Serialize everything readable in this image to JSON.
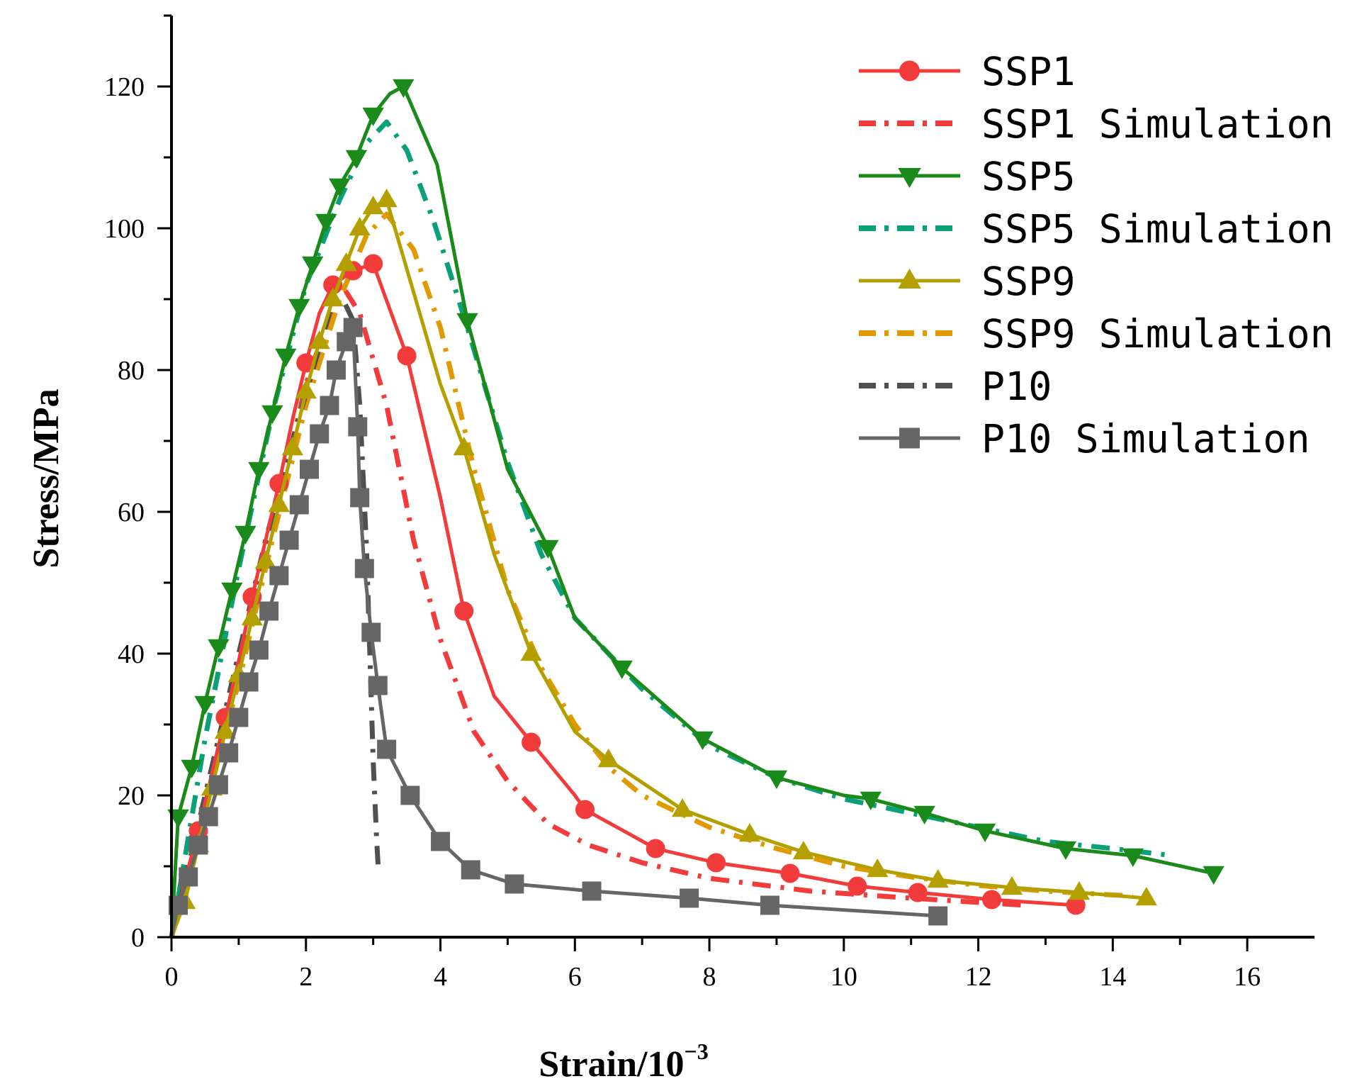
{
  "chart_data": {
    "type": "line",
    "title": "",
    "xlabel": "Strain/10",
    "xlabel_sup": "−3",
    "ylabel": "Stress/MPa",
    "xlim": [
      0,
      17
    ],
    "ylim": [
      0,
      130
    ],
    "xticks": [
      0,
      2,
      4,
      6,
      8,
      10,
      12,
      14,
      16
    ],
    "yticks": [
      0,
      20,
      40,
      60,
      80,
      100,
      120
    ],
    "legend_position": "top-right",
    "series": [
      {
        "name": "SSP1",
        "color": "#f23c3c",
        "style": "solid",
        "marker": "circle",
        "x": [
          0,
          0.2,
          0.4,
          0.6,
          0.8,
          1.0,
          1.2,
          1.4,
          1.6,
          1.8,
          2.0,
          2.2,
          2.4,
          2.7,
          3.0,
          3.5,
          4.0,
          4.35,
          4.8,
          5.35,
          6.0,
          6.15,
          7.2,
          8.1,
          9.2,
          10.2,
          11.1,
          12.2,
          13.45
        ],
        "y": [
          0,
          8,
          15,
          23,
          31,
          39,
          48,
          56,
          64,
          73,
          81,
          88,
          92,
          94,
          95,
          82,
          62,
          46,
          34,
          27.5,
          20,
          18,
          12.5,
          10.5,
          9,
          7.2,
          6.3,
          5.3,
          4.5
        ],
        "markers_x": [
          0.4,
          0.8,
          1.2,
          1.6,
          2.0,
          2.4,
          2.7,
          3.0,
          3.5,
          4.35,
          5.35,
          6.15,
          7.2,
          8.1,
          9.2,
          10.2,
          11.1,
          12.2,
          13.45
        ],
        "markers_y": [
          15,
          31,
          48,
          64,
          81,
          92,
          94,
          95,
          82,
          46,
          27.5,
          18,
          12.5,
          10.5,
          9,
          7.2,
          6.3,
          5.3,
          4.5
        ]
      },
      {
        "name": "SSP1 Simulation",
        "color": "#f23c3c",
        "style": "dashdot",
        "marker": "none",
        "x": [
          0,
          0.5,
          1.0,
          1.5,
          2.0,
          2.4,
          2.6,
          2.8,
          3.2,
          3.6,
          4.0,
          4.5,
          5.0,
          5.6,
          6.2,
          7.0,
          8.0,
          9.5,
          11.0,
          12.7
        ],
        "y": [
          0,
          18,
          38,
          58,
          78,
          89,
          91,
          88,
          75,
          56,
          42,
          29,
          22,
          16,
          13,
          10.5,
          8.3,
          6.5,
          5.5,
          4.5
        ]
      },
      {
        "name": "SSP5",
        "color": "#1a8a1a",
        "style": "solid",
        "marker": "triangle-down",
        "x": [
          0,
          0.1,
          0.3,
          0.5,
          0.7,
          0.9,
          1.1,
          1.3,
          1.5,
          1.7,
          1.9,
          2.1,
          2.3,
          2.5,
          2.75,
          3.0,
          3.25,
          3.45,
          3.95,
          4.4,
          5.0,
          5.6,
          6.0,
          6.7,
          7.9,
          8.5,
          9.0,
          10.0,
          10.4,
          11.2,
          12.1,
          13.3,
          14.3,
          15.5
        ],
        "y": [
          0,
          17,
          24,
          33,
          41,
          49,
          57,
          66,
          74,
          82,
          89,
          95,
          101,
          106,
          110,
          116,
          119,
          120,
          109,
          87,
          66,
          55,
          45,
          38,
          28,
          25,
          22.5,
          20,
          19.5,
          17.5,
          15,
          12.5,
          11.5,
          9
        ],
        "markers_x": [
          0.1,
          0.3,
          0.5,
          0.7,
          0.9,
          1.1,
          1.3,
          1.5,
          1.7,
          1.9,
          2.1,
          2.3,
          2.5,
          2.75,
          3.0,
          3.45,
          4.4,
          5.6,
          6.7,
          7.9,
          9.0,
          10.4,
          11.2,
          12.1,
          13.3,
          14.3,
          15.5
        ],
        "markers_y": [
          17,
          24,
          33,
          41,
          49,
          57,
          66,
          74,
          82,
          89,
          95,
          101,
          106,
          110,
          116,
          120,
          87,
          55,
          38,
          28,
          22.5,
          19.5,
          17.5,
          15,
          12.5,
          11.5,
          9
        ]
      },
      {
        "name": "SSP5 Simulation",
        "color": "#0aa07a",
        "style": "dashdot",
        "marker": "none",
        "x": [
          0,
          0.5,
          1.0,
          1.5,
          2.0,
          2.5,
          2.9,
          3.2,
          3.5,
          3.9,
          4.4,
          5.0,
          5.5,
          6.0,
          6.5,
          7.0,
          7.5,
          8.0,
          9.0,
          10.0,
          11.0,
          12.0,
          13.0,
          14.0,
          14.9
        ],
        "y": [
          0,
          28,
          52,
          74,
          92,
          104,
          112,
          115,
          111,
          101,
          86,
          67,
          54,
          45,
          40,
          35,
          31,
          27,
          22.5,
          19.5,
          17.5,
          15.5,
          13.5,
          12.5,
          11.5
        ]
      },
      {
        "name": "SSP9",
        "color": "#b3a000",
        "style": "solid",
        "marker": "triangle-up",
        "x": [
          0,
          0.2,
          0.4,
          0.6,
          0.8,
          1.0,
          1.2,
          1.4,
          1.6,
          1.8,
          2.0,
          2.2,
          2.4,
          2.6,
          2.8,
          3.0,
          3.2,
          3.6,
          4.0,
          4.35,
          4.8,
          5.35,
          6.0,
          6.5,
          7.6,
          8.6,
          9.4,
          10.5,
          11.4,
          12.5,
          13.5,
          14.5
        ],
        "y": [
          0,
          5,
          13,
          21,
          29,
          37,
          45,
          53,
          61,
          69,
          77,
          84,
          90,
          95,
          100,
          103,
          104,
          91,
          78,
          69,
          54,
          40,
          29,
          25,
          18,
          14.5,
          12,
          9.5,
          8,
          7,
          6.3,
          5.5
        ],
        "markers_x": [
          0.2,
          0.4,
          0.6,
          0.8,
          1.0,
          1.2,
          1.4,
          1.6,
          1.8,
          2.0,
          2.2,
          2.4,
          2.6,
          2.8,
          3.0,
          3.2,
          4.35,
          5.35,
          6.5,
          7.6,
          8.6,
          9.4,
          10.5,
          11.4,
          12.5,
          13.5,
          14.5
        ],
        "markers_y": [
          5,
          13,
          21,
          29,
          37,
          45,
          53,
          61,
          69,
          77,
          84,
          90,
          95,
          100,
          103,
          104,
          69,
          40,
          25,
          18,
          14.5,
          12,
          9.5,
          8,
          7,
          6.3,
          5.5
        ]
      },
      {
        "name": "SSP9 Simulation",
        "color": "#e09a00",
        "style": "dashdot",
        "marker": "none",
        "x": [
          0,
          0.5,
          1.0,
          1.5,
          2.0,
          2.5,
          2.9,
          3.2,
          3.6,
          4.0,
          4.5,
          5.0,
          5.5,
          6.0,
          6.5,
          7.0,
          8.0,
          9.0,
          10.0,
          11.0,
          12.0,
          13.0,
          14.3
        ],
        "y": [
          0,
          18,
          36,
          56,
          75,
          90,
          99,
          102,
          97,
          86,
          66,
          49,
          38,
          30,
          24,
          20,
          15.5,
          12.5,
          10,
          8.5,
          7.3,
          6.5,
          5.8
        ]
      },
      {
        "name": "P10",
        "color": "#505050",
        "style": "dashdot",
        "marker": "none",
        "x": [
          0,
          0.3,
          0.6,
          1.0,
          1.4,
          1.8,
          2.1,
          2.35,
          2.55,
          2.7,
          2.8,
          2.9,
          2.95,
          3.0,
          3.05,
          3.08
        ],
        "y": [
          0,
          12,
          24,
          40,
          56,
          70,
          80,
          88,
          90,
          87,
          75,
          55,
          40,
          25,
          14,
          9
        ]
      },
      {
        "name": "P10  Simulation",
        "color": "#666666",
        "style": "solid",
        "marker": "square",
        "x": [
          0,
          0.1,
          0.25,
          0.4,
          0.55,
          0.7,
          0.85,
          1.0,
          1.15,
          1.3,
          1.45,
          1.6,
          1.75,
          1.9,
          2.05,
          2.2,
          2.35,
          2.45,
          2.6,
          2.7,
          2.77,
          2.8,
          2.87,
          2.97,
          3.07,
          3.2,
          3.55,
          4.0,
          4.45,
          5.1,
          6.25,
          7.7,
          8.9,
          11.4
        ],
        "y": [
          0,
          4.5,
          8.5,
          13,
          17,
          21.5,
          26,
          31,
          36,
          40.5,
          46,
          51,
          56,
          61,
          66,
          71,
          75,
          80,
          84,
          86,
          72,
          62,
          52,
          43,
          35.5,
          26.5,
          20,
          13.5,
          9.5,
          7.5,
          6.5,
          5.5,
          4.5,
          3
        ],
        "markers_x": [
          0.1,
          0.25,
          0.4,
          0.55,
          0.7,
          0.85,
          1.0,
          1.15,
          1.3,
          1.45,
          1.6,
          1.75,
          1.9,
          2.05,
          2.2,
          2.35,
          2.45,
          2.6,
          2.7,
          2.77,
          2.8,
          2.87,
          2.97,
          3.07,
          3.2,
          3.55,
          4.0,
          4.45,
          5.1,
          6.25,
          7.7,
          8.9,
          11.4
        ],
        "markers_y": [
          4.5,
          8.5,
          13,
          17,
          21.5,
          26,
          31,
          36,
          40.5,
          46,
          51,
          56,
          61,
          66,
          71,
          75,
          80,
          84,
          86,
          72,
          62,
          52,
          43,
          35.5,
          26.5,
          20,
          13.5,
          9.5,
          7.5,
          6.5,
          5.5,
          4.5,
          3
        ]
      }
    ]
  }
}
